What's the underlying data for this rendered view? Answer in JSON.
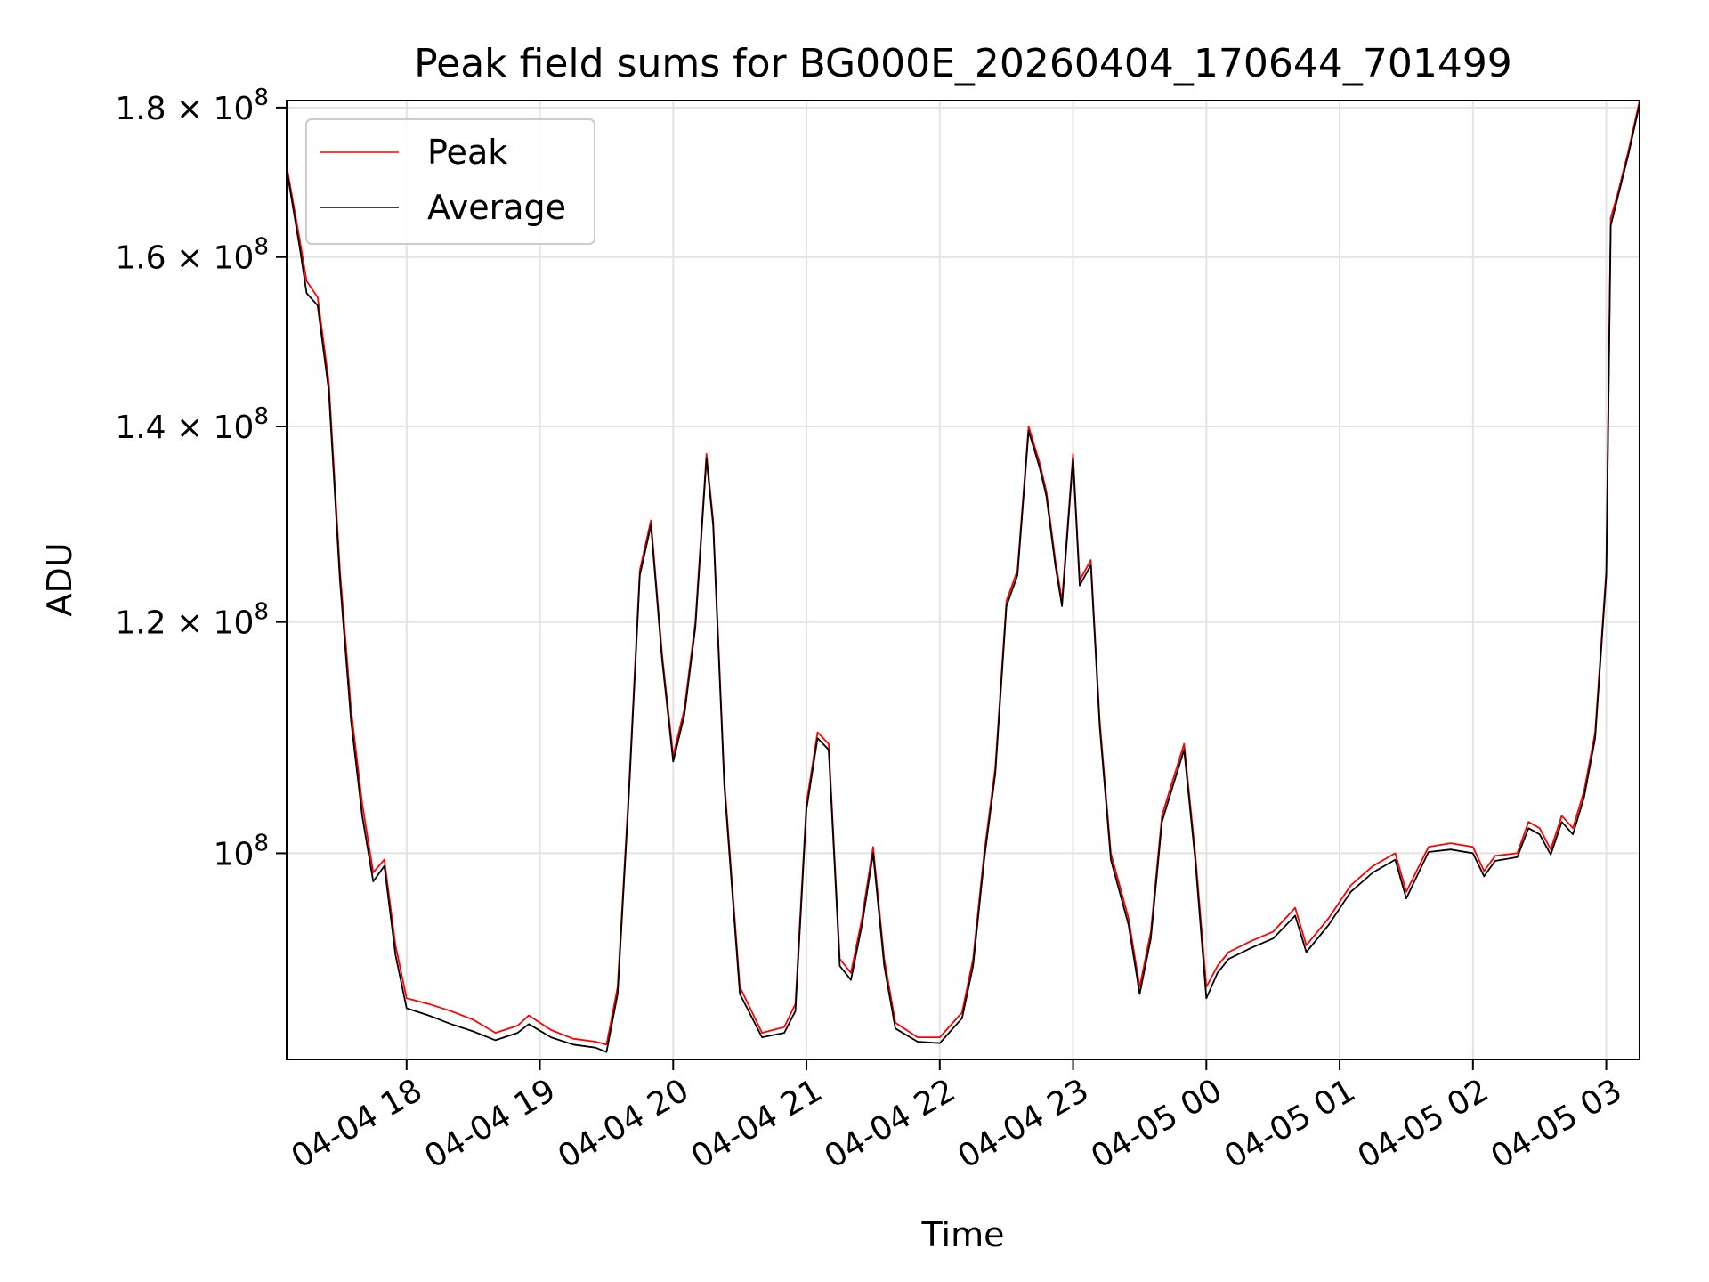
{
  "chart_data": {
    "type": "line",
    "title": "Peak field sums for BG000E_20260404_170644_701499",
    "xlabel": "Time",
    "ylabel": "ADU",
    "y_scale": "log",
    "grid": true,
    "legend_position": "top-left",
    "xlim": [
      "2026-04-04 17:06",
      "2026-04-05 03:15"
    ],
    "ylim": [
      85000000,
      181000000
    ],
    "x_ticks": [
      {
        "t": "2026-04-04 18:00",
        "label": "04-04 18"
      },
      {
        "t": "2026-04-04 19:00",
        "label": "04-04 19"
      },
      {
        "t": "2026-04-04 20:00",
        "label": "04-04 20"
      },
      {
        "t": "2026-04-04 21:00",
        "label": "04-04 21"
      },
      {
        "t": "2026-04-04 22:00",
        "label": "04-04 22"
      },
      {
        "t": "2026-04-04 23:00",
        "label": "04-04 23"
      },
      {
        "t": "2026-04-05 00:00",
        "label": "04-05 00"
      },
      {
        "t": "2026-04-05 01:00",
        "label": "04-05 01"
      },
      {
        "t": "2026-04-05 02:00",
        "label": "04-05 02"
      },
      {
        "t": "2026-04-05 03:00",
        "label": "04-05 03"
      }
    ],
    "y_ticks": [
      {
        "v": 100000000,
        "mant": "",
        "exp": "8"
      },
      {
        "v": 120000000,
        "mant": "1.2",
        "exp": "8"
      },
      {
        "v": 140000000,
        "mant": "1.4",
        "exp": "8"
      },
      {
        "v": 160000000,
        "mant": "1.6",
        "exp": "8"
      },
      {
        "v": 180000000,
        "mant": "1.8",
        "exp": "8"
      }
    ],
    "series": [
      {
        "name": "Peak",
        "color": "#ff0000",
        "points": [
          [
            "2026-04-04 17:06",
            172000000
          ],
          [
            "2026-04-04 17:12",
            162000000
          ],
          [
            "2026-04-04 17:15",
            157000000
          ],
          [
            "2026-04-04 17:20",
            155000000
          ],
          [
            "2026-04-04 17:25",
            145000000
          ],
          [
            "2026-04-04 17:30",
            125000000
          ],
          [
            "2026-04-04 17:35",
            112000000
          ],
          [
            "2026-04-04 17:40",
            104000000
          ],
          [
            "2026-04-04 17:45",
            98500000
          ],
          [
            "2026-04-04 17:50",
            99500000
          ],
          [
            "2026-04-04 17:55",
            93000000
          ],
          [
            "2026-04-04 18:00",
            89200000
          ],
          [
            "2026-04-04 18:10",
            88800000
          ],
          [
            "2026-04-04 18:20",
            88300000
          ],
          [
            "2026-04-04 18:30",
            87700000
          ],
          [
            "2026-04-04 18:40",
            86800000
          ],
          [
            "2026-04-04 18:50",
            87300000
          ],
          [
            "2026-04-04 18:55",
            88000000
          ],
          [
            "2026-04-04 19:05",
            87000000
          ],
          [
            "2026-04-04 19:15",
            86400000
          ],
          [
            "2026-04-04 19:25",
            86200000
          ],
          [
            "2026-04-04 19:30",
            86000000
          ],
          [
            "2026-04-04 19:35",
            90000000
          ],
          [
            "2026-04-04 19:40",
            105000000
          ],
          [
            "2026-04-04 19:45",
            125000000
          ],
          [
            "2026-04-04 19:50",
            130000000
          ],
          [
            "2026-04-04 19:55",
            117000000
          ],
          [
            "2026-04-04 20:00",
            108000000
          ],
          [
            "2026-04-04 20:05",
            112000000
          ],
          [
            "2026-04-04 20:10",
            120000000
          ],
          [
            "2026-04-04 20:15",
            137000000
          ],
          [
            "2026-04-04 20:18",
            130000000
          ],
          [
            "2026-04-04 20:23",
            106000000
          ],
          [
            "2026-04-04 20:30",
            90000000
          ],
          [
            "2026-04-04 20:40",
            86800000
          ],
          [
            "2026-04-04 20:50",
            87200000
          ],
          [
            "2026-04-04 20:55",
            88800000
          ],
          [
            "2026-04-04 21:00",
            104000000
          ],
          [
            "2026-04-04 21:05",
            110000000
          ],
          [
            "2026-04-04 21:10",
            109000000
          ],
          [
            "2026-04-04 21:15",
            92000000
          ],
          [
            "2026-04-04 21:20",
            91000000
          ],
          [
            "2026-04-04 21:25",
            95000000
          ],
          [
            "2026-04-04 21:30",
            100500000
          ],
          [
            "2026-04-04 21:35",
            92000000
          ],
          [
            "2026-04-04 21:40",
            87500000
          ],
          [
            "2026-04-04 21:50",
            86500000
          ],
          [
            "2026-04-04 22:00",
            86500000
          ],
          [
            "2026-04-04 22:10",
            88200000
          ],
          [
            "2026-04-04 22:15",
            92000000
          ],
          [
            "2026-04-04 22:20",
            100000000
          ],
          [
            "2026-04-04 22:25",
            107000000
          ],
          [
            "2026-04-04 22:30",
            122000000
          ],
          [
            "2026-04-04 22:35",
            125000000
          ],
          [
            "2026-04-04 22:40",
            140000000
          ],
          [
            "2026-04-04 22:45",
            136000000
          ],
          [
            "2026-04-04 22:48",
            133000000
          ],
          [
            "2026-04-04 22:52",
            126000000
          ],
          [
            "2026-04-04 22:55",
            122000000
          ],
          [
            "2026-04-04 23:00",
            137000000
          ],
          [
            "2026-04-04 23:03",
            124000000
          ],
          [
            "2026-04-04 23:08",
            126000000
          ],
          [
            "2026-04-04 23:12",
            111000000
          ],
          [
            "2026-04-04 23:17",
            100000000
          ],
          [
            "2026-04-04 23:25",
            95000000
          ],
          [
            "2026-04-04 23:30",
            90000000
          ],
          [
            "2026-04-04 23:35",
            94000000
          ],
          [
            "2026-04-04 23:40",
            103000000
          ],
          [
            "2026-04-04 23:45",
            106000000
          ],
          [
            "2026-04-04 23:50",
            109000000
          ],
          [
            "2026-04-04 23:55",
            100000000
          ],
          [
            "2026-04-05 00:00",
            90000000
          ],
          [
            "2026-04-05 00:05",
            91500000
          ],
          [
            "2026-04-05 00:10",
            92500000
          ],
          [
            "2026-04-05 00:20",
            93300000
          ],
          [
            "2026-04-05 00:30",
            94000000
          ],
          [
            "2026-04-05 00:40",
            95800000
          ],
          [
            "2026-04-05 00:45",
            93000000
          ],
          [
            "2026-04-05 00:55",
            95000000
          ],
          [
            "2026-04-05 01:05",
            97500000
          ],
          [
            "2026-04-05 01:15",
            99000000
          ],
          [
            "2026-04-05 01:25",
            100000000
          ],
          [
            "2026-04-05 01:30",
            97000000
          ],
          [
            "2026-04-05 01:40",
            100500000
          ],
          [
            "2026-04-05 01:50",
            100800000
          ],
          [
            "2026-04-05 02:00",
            100500000
          ],
          [
            "2026-04-05 02:05",
            98600000
          ],
          [
            "2026-04-05 02:10",
            99800000
          ],
          [
            "2026-04-05 02:20",
            100000000
          ],
          [
            "2026-04-05 02:25",
            102500000
          ],
          [
            "2026-04-05 02:30",
            102000000
          ],
          [
            "2026-04-05 02:35",
            100300000
          ],
          [
            "2026-04-05 02:40",
            103000000
          ],
          [
            "2026-04-05 02:45",
            102000000
          ],
          [
            "2026-04-05 02:50",
            105000000
          ],
          [
            "2026-04-05 02:55",
            110000000
          ],
          [
            "2026-04-05 03:00",
            125000000
          ],
          [
            "2026-04-05 03:02",
            165000000
          ],
          [
            "2026-04-05 03:05",
            168000000
          ],
          [
            "2026-04-05 03:10",
            174000000
          ],
          [
            "2026-04-05 03:15",
            181000000
          ]
        ]
      },
      {
        "name": "Average",
        "color": "#000000",
        "points": [
          [
            "2026-04-04 17:06",
            171500000
          ],
          [
            "2026-04-04 17:12",
            161000000
          ],
          [
            "2026-04-04 17:15",
            155500000
          ],
          [
            "2026-04-04 17:20",
            154000000
          ],
          [
            "2026-04-04 17:25",
            144000000
          ],
          [
            "2026-04-04 17:30",
            124000000
          ],
          [
            "2026-04-04 17:35",
            111000000
          ],
          [
            "2026-04-04 17:40",
            103000000
          ],
          [
            "2026-04-04 17:45",
            97800000
          ],
          [
            "2026-04-04 17:50",
            99000000
          ],
          [
            "2026-04-04 17:55",
            92300000
          ],
          [
            "2026-04-04 18:00",
            88500000
          ],
          [
            "2026-04-04 18:10",
            88000000
          ],
          [
            "2026-04-04 18:20",
            87400000
          ],
          [
            "2026-04-04 18:30",
            86900000
          ],
          [
            "2026-04-04 18:40",
            86300000
          ],
          [
            "2026-04-04 18:50",
            86800000
          ],
          [
            "2026-04-04 18:55",
            87400000
          ],
          [
            "2026-04-04 19:05",
            86500000
          ],
          [
            "2026-04-04 19:15",
            86000000
          ],
          [
            "2026-04-04 19:25",
            85800000
          ],
          [
            "2026-04-04 19:30",
            85500000
          ],
          [
            "2026-04-04 19:35",
            89500000
          ],
          [
            "2026-04-04 19:40",
            104500000
          ],
          [
            "2026-04-04 19:45",
            124500000
          ],
          [
            "2026-04-04 19:50",
            129500000
          ],
          [
            "2026-04-04 19:55",
            116500000
          ],
          [
            "2026-04-04 20:00",
            107500000
          ],
          [
            "2026-04-04 20:05",
            111500000
          ],
          [
            "2026-04-04 20:10",
            119500000
          ],
          [
            "2026-04-04 20:15",
            136500000
          ],
          [
            "2026-04-04 20:18",
            129500000
          ],
          [
            "2026-04-04 20:23",
            105500000
          ],
          [
            "2026-04-04 20:30",
            89500000
          ],
          [
            "2026-04-04 20:40",
            86500000
          ],
          [
            "2026-04-04 20:50",
            86800000
          ],
          [
            "2026-04-04 20:55",
            88300000
          ],
          [
            "2026-04-04 21:00",
            103500000
          ],
          [
            "2026-04-04 21:05",
            109500000
          ],
          [
            "2026-04-04 21:10",
            108500000
          ],
          [
            "2026-04-04 21:15",
            91500000
          ],
          [
            "2026-04-04 21:20",
            90500000
          ],
          [
            "2026-04-04 21:25",
            94500000
          ],
          [
            "2026-04-04 21:30",
            100000000
          ],
          [
            "2026-04-04 21:35",
            91500000
          ],
          [
            "2026-04-04 21:40",
            87100000
          ],
          [
            "2026-04-04 21:50",
            86200000
          ],
          [
            "2026-04-04 22:00",
            86100000
          ],
          [
            "2026-04-04 22:10",
            87800000
          ],
          [
            "2026-04-04 22:15",
            91500000
          ],
          [
            "2026-04-04 22:20",
            99500000
          ],
          [
            "2026-04-04 22:25",
            106500000
          ],
          [
            "2026-04-04 22:30",
            121500000
          ],
          [
            "2026-04-04 22:35",
            124500000
          ],
          [
            "2026-04-04 22:40",
            139500000
          ],
          [
            "2026-04-04 22:45",
            135500000
          ],
          [
            "2026-04-04 22:48",
            132500000
          ],
          [
            "2026-04-04 22:52",
            125500000
          ],
          [
            "2026-04-04 22:55",
            121500000
          ],
          [
            "2026-04-04 23:00",
            136500000
          ],
          [
            "2026-04-04 23:03",
            123500000
          ],
          [
            "2026-04-04 23:08",
            125500000
          ],
          [
            "2026-04-04 23:12",
            110500000
          ],
          [
            "2026-04-04 23:17",
            99500000
          ],
          [
            "2026-04-04 23:25",
            94500000
          ],
          [
            "2026-04-04 23:30",
            89500000
          ],
          [
            "2026-04-04 23:35",
            93500000
          ],
          [
            "2026-04-04 23:40",
            102500000
          ],
          [
            "2026-04-04 23:45",
            105500000
          ],
          [
            "2026-04-04 23:50",
            108500000
          ],
          [
            "2026-04-04 23:55",
            99500000
          ],
          [
            "2026-04-05 00:00",
            89200000
          ],
          [
            "2026-04-05 00:05",
            91000000
          ],
          [
            "2026-04-05 00:10",
            92000000
          ],
          [
            "2026-04-05 00:20",
            92800000
          ],
          [
            "2026-04-05 00:30",
            93500000
          ],
          [
            "2026-04-05 00:40",
            95200000
          ],
          [
            "2026-04-05 00:45",
            92500000
          ],
          [
            "2026-04-05 00:55",
            94500000
          ],
          [
            "2026-04-05 01:05",
            97000000
          ],
          [
            "2026-04-05 01:15",
            98500000
          ],
          [
            "2026-04-05 01:25",
            99500000
          ],
          [
            "2026-04-05 01:30",
            96500000
          ],
          [
            "2026-04-05 01:40",
            100100000
          ],
          [
            "2026-04-05 01:50",
            100300000
          ],
          [
            "2026-04-05 02:00",
            100000000
          ],
          [
            "2026-04-05 02:05",
            98200000
          ],
          [
            "2026-04-05 02:10",
            99400000
          ],
          [
            "2026-04-05 02:20",
            99700000
          ],
          [
            "2026-04-05 02:25",
            102000000
          ],
          [
            "2026-04-05 02:30",
            101500000
          ],
          [
            "2026-04-05 02:35",
            99900000
          ],
          [
            "2026-04-05 02:40",
            102500000
          ],
          [
            "2026-04-05 02:45",
            101500000
          ],
          [
            "2026-04-05 02:50",
            104500000
          ],
          [
            "2026-04-05 02:55",
            109500000
          ],
          [
            "2026-04-05 03:00",
            124500000
          ],
          [
            "2026-04-05 03:02",
            164000000
          ],
          [
            "2026-04-05 03:05",
            167500000
          ],
          [
            "2026-04-05 03:10",
            173500000
          ],
          [
            "2026-04-05 03:15",
            180500000
          ]
        ]
      }
    ]
  }
}
